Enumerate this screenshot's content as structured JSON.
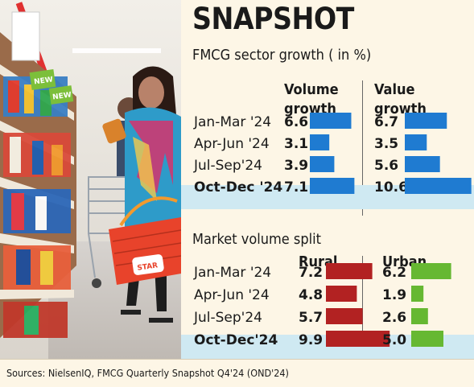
{
  "header": {
    "title": "SNAPSHOT",
    "subtitle": "FMCG sector growth ( in %)"
  },
  "chart_data": [
    {
      "type": "bar",
      "title": "FMCG sector growth ( in %)",
      "categories": [
        "Jan-Mar '24",
        "Apr-Jun '24",
        "Jul-Sep'24",
        "Oct-Dec '24"
      ],
      "series": [
        {
          "name": "Volume growth",
          "values": [
            6.6,
            3.1,
            3.9,
            7.1
          ],
          "color": "#1f7bd1",
          "labels": [
            "6.6",
            "3.1",
            "3.9",
            "7.1"
          ]
        },
        {
          "name": "Value growth",
          "values": [
            6.7,
            3.5,
            5.6,
            10.6
          ],
          "color": "#1f7bd1",
          "labels": [
            "6.7",
            "3.5",
            "5.6",
            "10.6"
          ]
        }
      ],
      "highlight_category": "Oct-Dec '24"
    },
    {
      "type": "bar",
      "title": "Market volume split",
      "categories": [
        "Jan-Mar '24",
        "Apr-Jun '24",
        "Jul-Sep'24",
        "Oct-Dec'24"
      ],
      "series": [
        {
          "name": "Rural",
          "values": [
            7.2,
            4.8,
            5.7,
            9.9
          ],
          "color": "#b22222",
          "labels": [
            "7.2",
            "4.8",
            "5.7",
            "9.9"
          ]
        },
        {
          "name": "Urban",
          "values": [
            6.2,
            1.9,
            2.6,
            5.0
          ],
          "color": "#66b832",
          "labels": [
            "6.2",
            "1.9",
            "2.6",
            "5.0"
          ]
        }
      ],
      "highlight_category": "Oct-Dec'24"
    }
  ],
  "section2": {
    "title": "Market volume split"
  },
  "columns": {
    "vol_line1": "Volume",
    "vol_line2": "growth",
    "val_line1": "Value",
    "val_line2": "growth",
    "rural": "Rural",
    "urban": "Urban"
  },
  "footer": {
    "sources": "Sources: NielsenIQ, FMCG Quarterly Snapshot Q4'24 (OND'24)"
  },
  "photo": {
    "sign1": "NEW",
    "sign2": "NEW",
    "basket_label": "STAR"
  }
}
